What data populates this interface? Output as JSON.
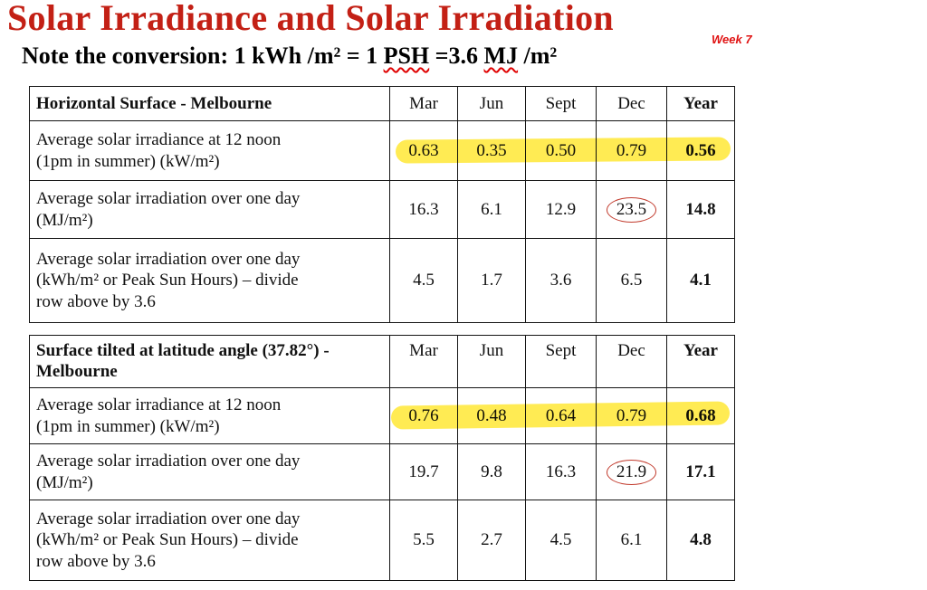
{
  "slide": {
    "title": "Solar Irradiance and Solar Irradiation",
    "week_label": "Week 7",
    "note": {
      "part1": "Note the conversion: 1 kWh /m² = 1 ",
      "psh": "PSH",
      "part2": " =3.6 ",
      "mj": "MJ",
      "part3": " /m²"
    }
  },
  "colors": {
    "title_red": "#c32015",
    "highlight_yellow": "#ffe93b",
    "circle_red": "#c23a2c",
    "squiggle_red": "#e00000"
  },
  "tables": [
    {
      "title": "Horizontal Surface - Melbourne",
      "columns": [
        "Mar",
        "Jun",
        "Sept",
        "Dec",
        "Year"
      ],
      "rows": [
        {
          "label": "Average solar irradiance at 12 noon\n(1pm in summer)  (kW/m²)",
          "values": [
            "0.63",
            "0.35",
            "0.50",
            "0.79",
            "0.56"
          ]
        },
        {
          "label": "Average solar irradiation over one day\n(MJ/m²)",
          "values": [
            "16.3",
            "6.1",
            "12.9",
            "23.5",
            "14.8"
          ]
        },
        {
          "label": "Average solar irradiation over one day\n(kWh/m² or Peak Sun Hours) – divide\nrow above by 3.6",
          "values": [
            "4.5",
            "1.7",
            "3.6",
            "6.5",
            "4.1"
          ]
        }
      ],
      "marks": {
        "highlighted_row_index": 0,
        "circled_value": "23.5",
        "circled_column": "Dec"
      }
    },
    {
      "title": "Surface tilted at latitude angle (37.82°) -\nMelbourne",
      "columns": [
        "Mar",
        "Jun",
        "Sept",
        "Dec",
        "Year"
      ],
      "rows": [
        {
          "label": "Average solar irradiance at 12 noon\n(1pm in summer)  (kW/m²)",
          "values": [
            "0.76",
            "0.48",
            "0.64",
            "0.79",
            "0.68"
          ]
        },
        {
          "label": "Average solar irradiation over one day\n(MJ/m²)",
          "values": [
            "19.7",
            "9.8",
            "16.3",
            "21.9",
            "17.1"
          ]
        },
        {
          "label": "Average solar irradiation over one day\n(kWh/m² or Peak Sun Hours) – divide\nrow above by 3.6",
          "values": [
            "5.5",
            "2.7",
            "4.5",
            "6.1",
            "4.8"
          ]
        }
      ],
      "marks": {
        "highlighted_row_index": 0,
        "circled_value": "21.9",
        "circled_column": "Dec"
      }
    }
  ]
}
